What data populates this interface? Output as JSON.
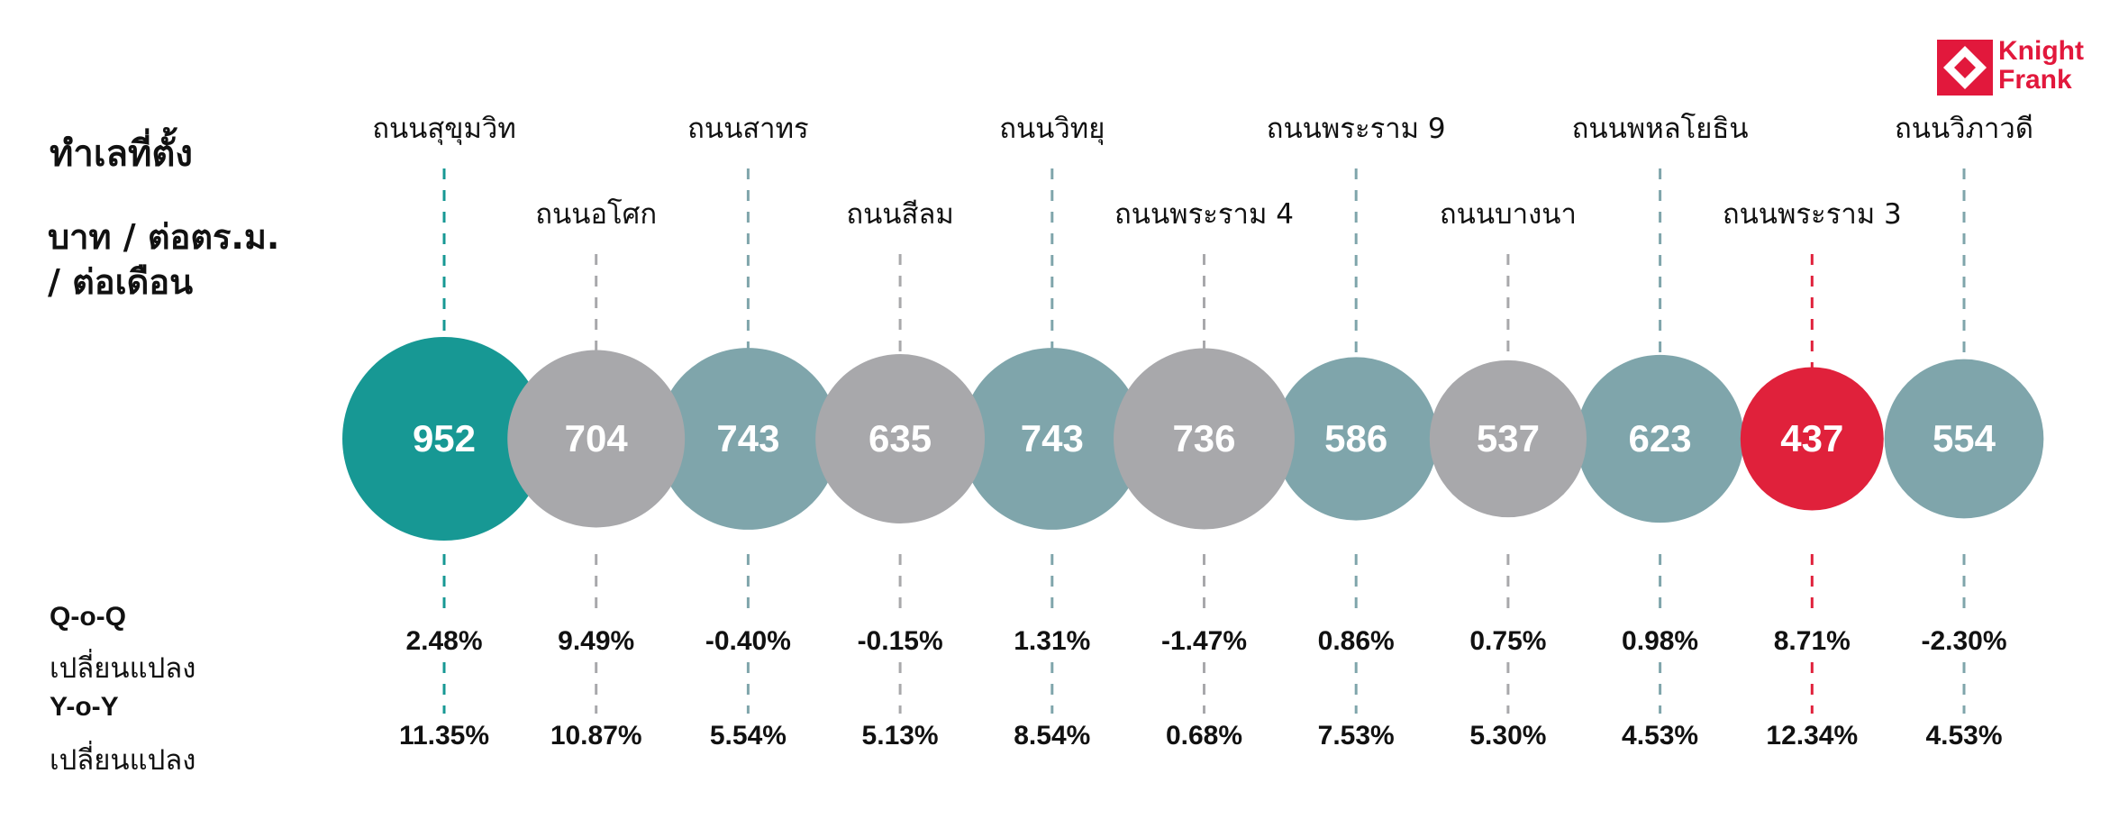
{
  "labels": {
    "location": "ทำเลที่ตั้ง",
    "unit_line1": "บาท / ต่อตร.ม.",
    "unit_line2": "/ ต่อเดือน",
    "qoq_title": "Q-o-Q",
    "qoq_sub": "เปลี่ยนแปลง",
    "yoy_title": "Y-o-Y",
    "yoy_sub": "เปลี่ยนแปลง"
  },
  "logo": {
    "line1": "Knight",
    "line2": "Frank",
    "color": "#e2183c"
  },
  "colors": {
    "highlight": "#179894",
    "blue": "#7fa5ab",
    "grey": "#a8a8ab",
    "red": "#e0213b"
  },
  "chart_data": {
    "type": "bubble",
    "unit": "บาท / ต่อตร.ม. / ต่อเดือน",
    "categories": [
      "ถนนสุขุมวิท",
      "ถนนอโศก",
      "ถนนสาทร",
      "ถนนสีลม",
      "ถนนวิทยุ",
      "ถนนพระราม 4",
      "ถนนพระราม 9",
      "ถนนบางนา",
      "ถนนพหลโยธิน",
      "ถนนพระราม 3",
      "ถนนวิภาวดี"
    ],
    "values": [
      952,
      704,
      743,
      635,
      743,
      736,
      586,
      537,
      623,
      437,
      554
    ],
    "colors": [
      "highlight",
      "grey",
      "blue",
      "grey",
      "blue",
      "grey",
      "blue",
      "grey",
      "blue",
      "red",
      "blue"
    ],
    "qoq": [
      "2.48%",
      "9.49%",
      "-0.40%",
      "-0.15%",
      "1.31%",
      "-1.47%",
      "0.86%",
      "0.75%",
      "0.98%",
      "8.71%",
      "-2.30%"
    ],
    "yoy": [
      "11.35%",
      "10.87%",
      "5.54%",
      "5.13%",
      "8.54%",
      "0.68%",
      "7.53%",
      "5.30%",
      "4.53%",
      "12.34%",
      "4.53%"
    ]
  }
}
